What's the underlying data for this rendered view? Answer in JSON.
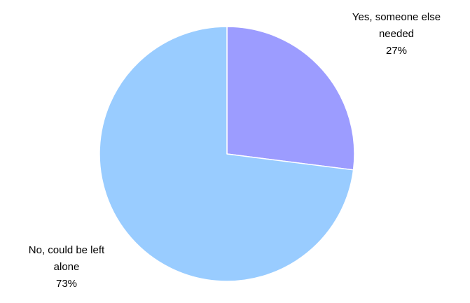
{
  "chart_data": {
    "type": "pie",
    "slices": [
      {
        "label_lines": [
          "Yes, someone else",
          "needed"
        ],
        "value": 27,
        "display": "27%",
        "color": "#9c9cff"
      },
      {
        "label_lines": [
          "No, could be left",
          "alone"
        ],
        "value": 73,
        "display": "73%",
        "color": "#99ccff"
      }
    ],
    "start_angle_deg": 0,
    "direction": "clockwise",
    "legend": "none",
    "data_labels": "outside"
  }
}
